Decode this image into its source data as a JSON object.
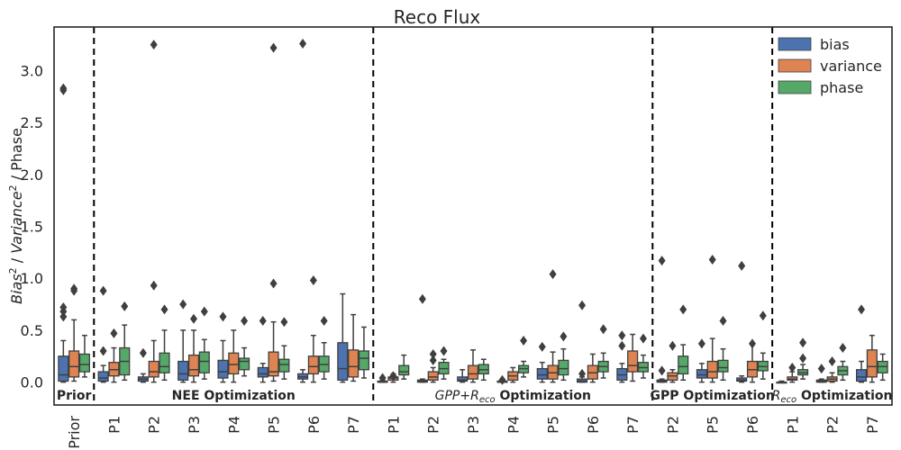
{
  "chart_data": {
    "type": "box",
    "title": "Reco Flux",
    "ylabel": "Bias² / Variance² / Phase",
    "ylim": [
      -0.22,
      3.42
    ],
    "yticks": [
      0.0,
      0.5,
      1.0,
      1.5,
      2.0,
      2.5,
      3.0
    ],
    "ytick_labels": [
      "0.0",
      "0.5",
      "1.0",
      "1.5",
      "2.0",
      "2.5",
      "3.0"
    ],
    "legend": {
      "position": "top-right",
      "entries": [
        "bias",
        "variance",
        "phase"
      ]
    },
    "colors": {
      "bias": "#4c72b0",
      "variance": "#dd8452",
      "phase": "#55a868",
      "box_edge": "#3f3f3f",
      "divider": "#000000"
    },
    "categories": [
      "Prior",
      "P1",
      "P2",
      "P3",
      "P4",
      "P5",
      "P6",
      "P7",
      "P1",
      "P2",
      "P3",
      "P4",
      "P5",
      "P6",
      "P7",
      "P2",
      "P5",
      "P6",
      "P1",
      "P2",
      "P7"
    ],
    "group_separators_after_index": [
      0,
      7,
      14,
      17
    ],
    "sections": [
      {
        "label": "Prior",
        "start": 0,
        "end": 0
      },
      {
        "label": "NEE Optimization",
        "start": 1,
        "end": 7
      },
      {
        "label": "GPP+R",
        "label_sub": "eco",
        "label_suffix": " Optimization",
        "start": 8,
        "end": 14
      },
      {
        "label": "GPP Optimization",
        "start": 15,
        "end": 17
      },
      {
        "label": "R",
        "label_sub": "eco",
        "label_suffix": " Optimization",
        "start": 18,
        "end": 20
      }
    ],
    "series": [
      {
        "name": "bias",
        "boxes": [
          [
            0.0,
            0.01,
            0.07,
            0.25,
            0.4,
            [
              0.63,
              0.68,
              0.72,
              2.81,
              2.83
            ]
          ],
          [
            0.0,
            0.01,
            0.04,
            0.1,
            0.16,
            [
              0.3,
              0.88
            ]
          ],
          [
            0.0,
            0.01,
            0.03,
            0.05,
            0.08,
            [
              0.28
            ]
          ],
          [
            0.0,
            0.02,
            0.08,
            0.2,
            0.5,
            [
              0.75
            ]
          ],
          [
            0.0,
            0.04,
            0.1,
            0.21,
            0.4,
            [
              0.63
            ]
          ],
          [
            0.0,
            0.05,
            0.08,
            0.14,
            0.18,
            [
              0.59
            ]
          ],
          [
            0.0,
            0.03,
            0.05,
            0.08,
            0.12,
            [
              3.26
            ]
          ],
          [
            0.0,
            0.02,
            0.13,
            0.38,
            0.85,
            []
          ],
          [
            0.0,
            0.0,
            0.0,
            0.01,
            0.02,
            [
              0.04
            ]
          ],
          [
            0.0,
            0.0,
            0.01,
            0.02,
            0.03,
            [
              0.8
            ]
          ],
          [
            0.0,
            0.01,
            0.02,
            0.05,
            0.12,
            []
          ],
          [
            0.0,
            0.0,
            0.0,
            0.01,
            0.03,
            [
              0.02
            ]
          ],
          [
            0.0,
            0.03,
            0.07,
            0.13,
            0.19,
            [
              0.34
            ]
          ],
          [
            0.0,
            0.0,
            0.01,
            0.03,
            0.05,
            [
              0.08,
              0.74
            ]
          ],
          [
            0.0,
            0.02,
            0.07,
            0.13,
            0.18,
            [
              0.35,
              0.45
            ]
          ],
          [
            0.0,
            0.0,
            0.01,
            0.02,
            0.03,
            [
              0.11,
              1.17
            ]
          ],
          [
            0.0,
            0.04,
            0.07,
            0.12,
            0.18,
            [
              0.37
            ]
          ],
          [
            0.0,
            0.01,
            0.02,
            0.04,
            0.06,
            [
              1.12
            ]
          ],
          [
            0.0,
            0.0,
            0.0,
            0.0,
            0.01,
            []
          ],
          [
            0.0,
            0.0,
            0.01,
            0.02,
            0.03,
            [
              0.13
            ]
          ],
          [
            0.0,
            0.01,
            0.05,
            0.12,
            0.2,
            [
              0.7
            ]
          ]
        ]
      },
      {
        "name": "variance",
        "boxes": [
          [
            0.01,
            0.05,
            0.15,
            0.3,
            0.6,
            [
              0.88,
              0.9
            ]
          ],
          [
            0.0,
            0.06,
            0.12,
            0.19,
            0.33,
            [
              0.47
            ]
          ],
          [
            0.0,
            0.05,
            0.1,
            0.2,
            0.4,
            [
              0.93,
              3.25
            ]
          ],
          [
            0.0,
            0.06,
            0.12,
            0.26,
            0.5,
            [
              0.61
            ]
          ],
          [
            0.0,
            0.08,
            0.17,
            0.28,
            0.5,
            []
          ],
          [
            0.01,
            0.06,
            0.1,
            0.29,
            0.58,
            [
              0.95,
              3.22
            ]
          ],
          [
            0.0,
            0.08,
            0.15,
            0.25,
            0.45,
            [
              0.98
            ]
          ],
          [
            0.01,
            0.05,
            0.15,
            0.31,
            0.65,
            []
          ],
          [
            0.0,
            0.02,
            0.04,
            0.05,
            0.08,
            [
              0.06
            ]
          ],
          [
            0.0,
            0.02,
            0.05,
            0.1,
            0.14,
            [
              0.21,
              0.27
            ]
          ],
          [
            0.0,
            0.03,
            0.08,
            0.16,
            0.31,
            []
          ],
          [
            0.0,
            0.02,
            0.06,
            0.1,
            0.14,
            []
          ],
          [
            0.0,
            0.03,
            0.09,
            0.16,
            0.29,
            [
              1.04
            ]
          ],
          [
            0.0,
            0.03,
            0.09,
            0.16,
            0.27,
            []
          ],
          [
            0.01,
            0.1,
            0.16,
            0.3,
            0.46,
            []
          ],
          [
            0.0,
            0.02,
            0.06,
            0.09,
            0.12,
            [
              0.35
            ]
          ],
          [
            0.0,
            0.04,
            0.1,
            0.2,
            0.42,
            [
              1.18
            ]
          ],
          [
            0.0,
            0.05,
            0.12,
            0.2,
            0.37,
            [
              0.37
            ]
          ],
          [
            0.0,
            0.02,
            0.03,
            0.05,
            0.1,
            [
              0.14
            ]
          ],
          [
            0.0,
            0.01,
            0.03,
            0.05,
            0.09,
            [
              0.2
            ]
          ],
          [
            0.0,
            0.05,
            0.15,
            0.31,
            0.45,
            []
          ]
        ]
      },
      {
        "name": "phase",
        "boxes": [
          [
            0.05,
            0.1,
            0.17,
            0.27,
            0.45,
            []
          ],
          [
            0.02,
            0.07,
            0.2,
            0.33,
            0.55,
            [
              0.73
            ]
          ],
          [
            0.02,
            0.09,
            0.15,
            0.28,
            0.5,
            [
              0.7
            ]
          ],
          [
            0.03,
            0.09,
            0.2,
            0.29,
            0.41,
            [
              0.68
            ]
          ],
          [
            0.06,
            0.12,
            0.2,
            0.23,
            0.33,
            [
              0.59
            ]
          ],
          [
            0.03,
            0.1,
            0.17,
            0.22,
            0.35,
            [
              0.58
            ]
          ],
          [
            0.03,
            0.1,
            0.17,
            0.25,
            0.38,
            [
              0.59
            ]
          ],
          [
            0.04,
            0.12,
            0.23,
            0.3,
            0.53,
            []
          ],
          [
            0.03,
            0.07,
            0.1,
            0.16,
            0.26,
            []
          ],
          [
            0.03,
            0.08,
            0.13,
            0.19,
            0.22,
            [
              0.3
            ]
          ],
          [
            0.02,
            0.08,
            0.12,
            0.17,
            0.22,
            []
          ],
          [
            0.05,
            0.09,
            0.13,
            0.16,
            0.2,
            [
              0.4
            ]
          ],
          [
            0.02,
            0.07,
            0.13,
            0.21,
            0.32,
            [
              0.44
            ]
          ],
          [
            0.04,
            0.1,
            0.15,
            0.2,
            0.28,
            [
              0.51
            ]
          ],
          [
            0.04,
            0.1,
            0.14,
            0.19,
            0.26,
            [
              0.42
            ]
          ],
          [
            0.02,
            0.08,
            0.15,
            0.25,
            0.36,
            [
              0.7
            ]
          ],
          [
            0.02,
            0.1,
            0.14,
            0.21,
            0.32,
            [
              0.59
            ]
          ],
          [
            0.03,
            0.11,
            0.15,
            0.2,
            0.28,
            [
              0.64
            ]
          ],
          [
            0.03,
            0.07,
            0.09,
            0.12,
            0.17,
            [
              0.23,
              0.38
            ]
          ],
          [
            0.02,
            0.07,
            0.11,
            0.15,
            0.2,
            [
              0.33
            ]
          ],
          [
            0.02,
            0.09,
            0.15,
            0.2,
            0.27,
            []
          ]
        ]
      }
    ]
  }
}
